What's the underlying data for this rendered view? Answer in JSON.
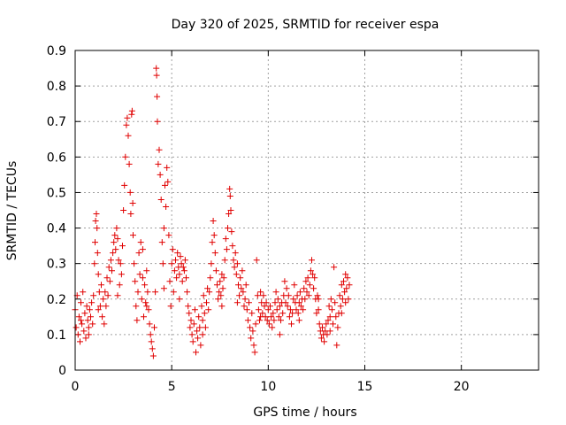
{
  "chart_data": {
    "type": "scatter",
    "title": "Day 320 of 2025, SRMTID for receiver espa",
    "xlabel": "GPS time / hours",
    "ylabel": "SRMTID / TECUs",
    "xlim": [
      0,
      24
    ],
    "ylim": [
      0,
      0.9
    ],
    "x_ticks": [
      0,
      5,
      10,
      15,
      20
    ],
    "x_tick_labels": [
      "0",
      "5",
      "10",
      "15",
      "20"
    ],
    "y_ticks": [
      0,
      0.1,
      0.2,
      0.3,
      0.4,
      0.5,
      0.6,
      0.7,
      0.8,
      0.9
    ],
    "y_tick_labels": [
      "0",
      "0.1",
      "0.2",
      "0.3",
      "0.4",
      "0.5",
      "0.6",
      "0.7",
      "0.8",
      "0.9"
    ],
    "grid": true,
    "marker": "+",
    "color": "#e00000",
    "series": [
      {
        "name": "SRMTID",
        "points": [
          [
            0.0,
            0.17
          ],
          [
            0.05,
            0.12
          ],
          [
            0.1,
            0.21
          ],
          [
            0.15,
            0.1
          ],
          [
            0.2,
            0.15
          ],
          [
            0.25,
            0.08
          ],
          [
            0.3,
            0.19
          ],
          [
            0.35,
            0.13
          ],
          [
            0.4,
            0.22
          ],
          [
            0.45,
            0.11
          ],
          [
            0.5,
            0.16
          ],
          [
            0.55,
            0.09
          ],
          [
            0.6,
            0.18
          ],
          [
            0.65,
            0.14
          ],
          [
            0.7,
            0.12
          ],
          [
            0.75,
            0.17
          ],
          [
            0.8,
            0.15
          ],
          [
            0.85,
            0.19
          ],
          [
            0.9,
            0.13
          ],
          [
            0.95,
            0.21
          ],
          [
            1.0,
            0.3
          ],
          [
            1.03,
            0.36
          ],
          [
            1.06,
            0.42
          ],
          [
            1.1,
            0.44
          ],
          [
            1.13,
            0.4
          ],
          [
            1.16,
            0.33
          ],
          [
            1.2,
            0.27
          ],
          [
            1.25,
            0.22
          ],
          [
            1.3,
            0.18
          ],
          [
            1.35,
            0.24
          ],
          [
            1.4,
            0.15
          ],
          [
            1.45,
            0.2
          ],
          [
            1.5,
            0.13
          ],
          [
            1.55,
            0.22
          ],
          [
            1.6,
            0.18
          ],
          [
            1.65,
            0.26
          ],
          [
            1.7,
            0.21
          ],
          [
            1.75,
            0.29
          ],
          [
            1.8,
            0.25
          ],
          [
            1.85,
            0.31
          ],
          [
            1.9,
            0.28
          ],
          [
            1.95,
            0.33
          ],
          [
            2.0,
            0.36
          ],
          [
            2.05,
            0.38
          ],
          [
            2.1,
            0.34
          ],
          [
            2.15,
            0.4
          ],
          [
            2.2,
            0.37
          ],
          [
            2.25,
            0.31
          ],
          [
            2.3,
            0.24
          ],
          [
            2.35,
            0.3
          ],
          [
            2.4,
            0.27
          ],
          [
            2.45,
            0.35
          ],
          [
            2.5,
            0.45
          ],
          [
            2.55,
            0.52
          ],
          [
            2.6,
            0.6
          ],
          [
            2.65,
            0.69
          ],
          [
            2.7,
            0.71
          ],
          [
            2.75,
            0.66
          ],
          [
            2.8,
            0.58
          ],
          [
            2.85,
            0.5
          ],
          [
            2.88,
            0.44
          ],
          [
            2.92,
            0.72
          ],
          [
            2.95,
            0.73
          ],
          [
            2.98,
            0.47
          ],
          [
            3.0,
            0.38
          ],
          [
            3.05,
            0.3
          ],
          [
            3.1,
            0.25
          ],
          [
            3.15,
            0.18
          ],
          [
            3.2,
            0.14
          ],
          [
            3.25,
            0.22
          ],
          [
            3.3,
            0.33
          ],
          [
            3.35,
            0.27
          ],
          [
            3.4,
            0.36
          ],
          [
            3.45,
            0.2
          ],
          [
            3.5,
            0.26
          ],
          [
            3.55,
            0.15
          ],
          [
            3.6,
            0.24
          ],
          [
            3.65,
            0.19
          ],
          [
            3.7,
            0.28
          ],
          [
            3.75,
            0.22
          ],
          [
            3.8,
            0.17
          ],
          [
            3.85,
            0.13
          ],
          [
            3.9,
            0.1
          ],
          [
            3.95,
            0.08
          ],
          [
            4.0,
            0.06
          ],
          [
            4.05,
            0.04
          ],
          [
            4.1,
            0.12
          ],
          [
            4.15,
            0.22
          ],
          [
            4.2,
            0.85
          ],
          [
            4.22,
            0.83
          ],
          [
            4.24,
            0.77
          ],
          [
            4.26,
            0.7
          ],
          [
            4.3,
            0.58
          ],
          [
            4.35,
            0.62
          ],
          [
            4.4,
            0.55
          ],
          [
            4.45,
            0.48
          ],
          [
            4.5,
            0.36
          ],
          [
            4.55,
            0.3
          ],
          [
            4.6,
            0.4
          ],
          [
            4.65,
            0.52
          ],
          [
            4.7,
            0.46
          ],
          [
            4.75,
            0.57
          ],
          [
            4.8,
            0.53
          ],
          [
            4.85,
            0.38
          ],
          [
            4.9,
            0.25
          ],
          [
            4.95,
            0.18
          ],
          [
            5.0,
            0.3
          ],
          [
            5.05,
            0.34
          ],
          [
            5.1,
            0.22
          ],
          [
            5.15,
            0.28
          ],
          [
            5.2,
            0.31
          ],
          [
            5.25,
            0.26
          ],
          [
            5.3,
            0.33
          ],
          [
            5.35,
            0.29
          ],
          [
            5.4,
            0.27
          ],
          [
            5.45,
            0.32
          ],
          [
            5.5,
            0.3
          ],
          [
            5.55,
            0.25
          ],
          [
            5.6,
            0.29
          ],
          [
            5.65,
            0.28
          ],
          [
            5.7,
            0.31
          ],
          [
            5.75,
            0.26
          ],
          [
            5.8,
            0.22
          ],
          [
            5.85,
            0.18
          ],
          [
            5.9,
            0.16
          ],
          [
            5.95,
            0.12
          ],
          [
            6.0,
            0.14
          ],
          [
            6.05,
            0.1
          ],
          [
            6.1,
            0.08
          ],
          [
            6.15,
            0.13
          ],
          [
            6.2,
            0.17
          ],
          [
            6.25,
            0.05
          ],
          [
            6.3,
            0.11
          ],
          [
            6.35,
            0.09
          ],
          [
            6.4,
            0.15
          ],
          [
            6.45,
            0.12
          ],
          [
            6.5,
            0.07
          ],
          [
            6.55,
            0.18
          ],
          [
            6.6,
            0.14
          ],
          [
            6.65,
            0.21
          ],
          [
            6.7,
            0.16
          ],
          [
            6.75,
            0.12
          ],
          [
            6.8,
            0.19
          ],
          [
            6.85,
            0.23
          ],
          [
            6.9,
            0.17
          ],
          [
            6.95,
            0.22
          ],
          [
            7.0,
            0.26
          ],
          [
            7.05,
            0.3
          ],
          [
            7.1,
            0.36
          ],
          [
            7.15,
            0.42
          ],
          [
            7.2,
            0.38
          ],
          [
            7.25,
            0.33
          ],
          [
            7.3,
            0.28
          ],
          [
            7.35,
            0.24
          ],
          [
            7.4,
            0.2
          ],
          [
            7.45,
            0.22
          ],
          [
            7.5,
            0.25
          ],
          [
            7.55,
            0.21
          ],
          [
            7.6,
            0.27
          ],
          [
            7.65,
            0.23
          ],
          [
            7.7,
            0.26
          ],
          [
            7.75,
            0.31
          ],
          [
            7.8,
            0.37
          ],
          [
            7.85,
            0.34
          ],
          [
            7.9,
            0.4
          ],
          [
            7.95,
            0.44
          ],
          [
            8.0,
            0.51
          ],
          [
            8.03,
            0.49
          ],
          [
            8.06,
            0.45
          ],
          [
            8.1,
            0.39
          ],
          [
            8.15,
            0.35
          ],
          [
            8.2,
            0.31
          ],
          [
            8.25,
            0.29
          ],
          [
            8.3,
            0.33
          ],
          [
            8.35,
            0.27
          ],
          [
            8.4,
            0.3
          ],
          [
            8.45,
            0.24
          ],
          [
            8.5,
            0.21
          ],
          [
            8.55,
            0.26
          ],
          [
            8.6,
            0.23
          ],
          [
            8.65,
            0.28
          ],
          [
            8.7,
            0.22
          ],
          [
            8.75,
            0.18
          ],
          [
            8.8,
            0.2
          ],
          [
            8.85,
            0.24
          ],
          [
            8.9,
            0.17
          ],
          [
            8.95,
            0.14
          ],
          [
            9.0,
            0.19
          ],
          [
            9.05,
            0.12
          ],
          [
            9.1,
            0.09
          ],
          [
            9.15,
            0.16
          ],
          [
            9.2,
            0.11
          ],
          [
            9.25,
            0.07
          ],
          [
            9.3,
            0.05
          ],
          [
            9.35,
            0.13
          ],
          [
            9.4,
            0.31
          ],
          [
            9.45,
            0.21
          ],
          [
            9.5,
            0.17
          ],
          [
            9.55,
            0.14
          ],
          [
            9.6,
            0.22
          ],
          [
            9.65,
            0.19
          ],
          [
            9.7,
            0.16
          ],
          [
            9.75,
            0.21
          ],
          [
            9.8,
            0.18
          ],
          [
            9.85,
            0.15
          ],
          [
            9.9,
            0.19
          ],
          [
            9.95,
            0.14
          ],
          [
            10.0,
            0.17
          ],
          [
            10.05,
            0.13
          ],
          [
            10.1,
            0.18
          ],
          [
            10.15,
            0.15
          ],
          [
            10.2,
            0.12
          ],
          [
            10.25,
            0.16
          ],
          [
            10.3,
            0.14
          ],
          [
            10.35,
            0.19
          ],
          [
            10.4,
            0.22
          ],
          [
            10.45,
            0.17
          ],
          [
            10.5,
            0.2
          ],
          [
            10.55,
            0.15
          ],
          [
            10.6,
            0.1
          ],
          [
            10.65,
            0.14
          ],
          [
            10.7,
            0.19
          ],
          [
            10.75,
            0.16
          ],
          [
            10.8,
            0.21
          ],
          [
            10.85,
            0.25
          ],
          [
            10.9,
            0.19
          ],
          [
            10.95,
            0.23
          ],
          [
            11.0,
            0.18
          ],
          [
            11.05,
            0.21
          ],
          [
            11.1,
            0.15
          ],
          [
            11.15,
            0.17
          ],
          [
            11.2,
            0.13
          ],
          [
            11.25,
            0.16
          ],
          [
            11.3,
            0.2
          ],
          [
            11.35,
            0.24
          ],
          [
            11.4,
            0.19
          ],
          [
            11.45,
            0.17
          ],
          [
            11.5,
            0.21
          ],
          [
            11.55,
            0.16
          ],
          [
            11.6,
            0.19
          ],
          [
            11.65,
            0.22
          ],
          [
            11.7,
            0.18
          ],
          [
            11.75,
            0.2
          ],
          [
            11.8,
            0.17
          ],
          [
            11.85,
            0.23
          ],
          [
            11.9,
            0.2
          ],
          [
            11.95,
            0.25
          ],
          [
            12.0,
            0.22
          ],
          [
            12.05,
            0.26
          ],
          [
            12.1,
            0.21
          ],
          [
            12.15,
            0.24
          ],
          [
            12.2,
            0.28
          ],
          [
            12.25,
            0.31
          ],
          [
            12.3,
            0.27
          ],
          [
            12.35,
            0.23
          ],
          [
            12.4,
            0.26
          ],
          [
            12.45,
            0.2
          ],
          [
            12.5,
            0.16
          ],
          [
            12.55,
            0.21
          ],
          [
            12.6,
            0.17
          ],
          [
            12.65,
            0.13
          ],
          [
            12.7,
            0.11
          ],
          [
            12.75,
            0.09
          ],
          [
            12.8,
            0.12
          ],
          [
            12.85,
            0.1
          ],
          [
            12.9,
            0.08
          ],
          [
            12.95,
            0.11
          ],
          [
            13.0,
            0.13
          ],
          [
            13.05,
            0.1
          ],
          [
            13.1,
            0.14
          ],
          [
            13.15,
            0.18
          ],
          [
            13.2,
            0.15
          ],
          [
            13.25,
            0.2
          ],
          [
            13.3,
            0.17
          ],
          [
            13.35,
            0.13
          ],
          [
            13.4,
            0.29
          ],
          [
            13.45,
            0.19
          ],
          [
            13.5,
            0.15
          ],
          [
            13.55,
            0.07
          ],
          [
            13.6,
            0.12
          ],
          [
            13.65,
            0.16
          ],
          [
            13.7,
            0.21
          ],
          [
            13.75,
            0.18
          ],
          [
            13.8,
            0.24
          ],
          [
            13.85,
            0.2
          ],
          [
            13.9,
            0.25
          ],
          [
            13.95,
            0.22
          ],
          [
            14.0,
            0.27
          ],
          [
            14.05,
            0.23
          ],
          [
            14.1,
            0.26
          ],
          [
            14.15,
            0.2
          ],
          [
            14.2,
            0.24
          ],
          [
            0.3,
            0.14
          ],
          [
            0.7,
            0.1
          ],
          [
            1.2,
            0.17
          ],
          [
            2.2,
            0.21
          ],
          [
            3.5,
            0.34
          ],
          [
            3.7,
            0.18
          ],
          [
            4.6,
            0.23
          ],
          [
            5.4,
            0.2
          ],
          [
            6.6,
            0.1
          ],
          [
            7.6,
            0.18
          ],
          [
            8.4,
            0.19
          ],
          [
            9.6,
            0.15
          ],
          [
            10.6,
            0.18
          ],
          [
            11.6,
            0.14
          ],
          [
            12.6,
            0.2
          ],
          [
            13.2,
            0.11
          ],
          [
            13.8,
            0.16
          ],
          [
            14.0,
            0.19
          ]
        ]
      }
    ]
  }
}
